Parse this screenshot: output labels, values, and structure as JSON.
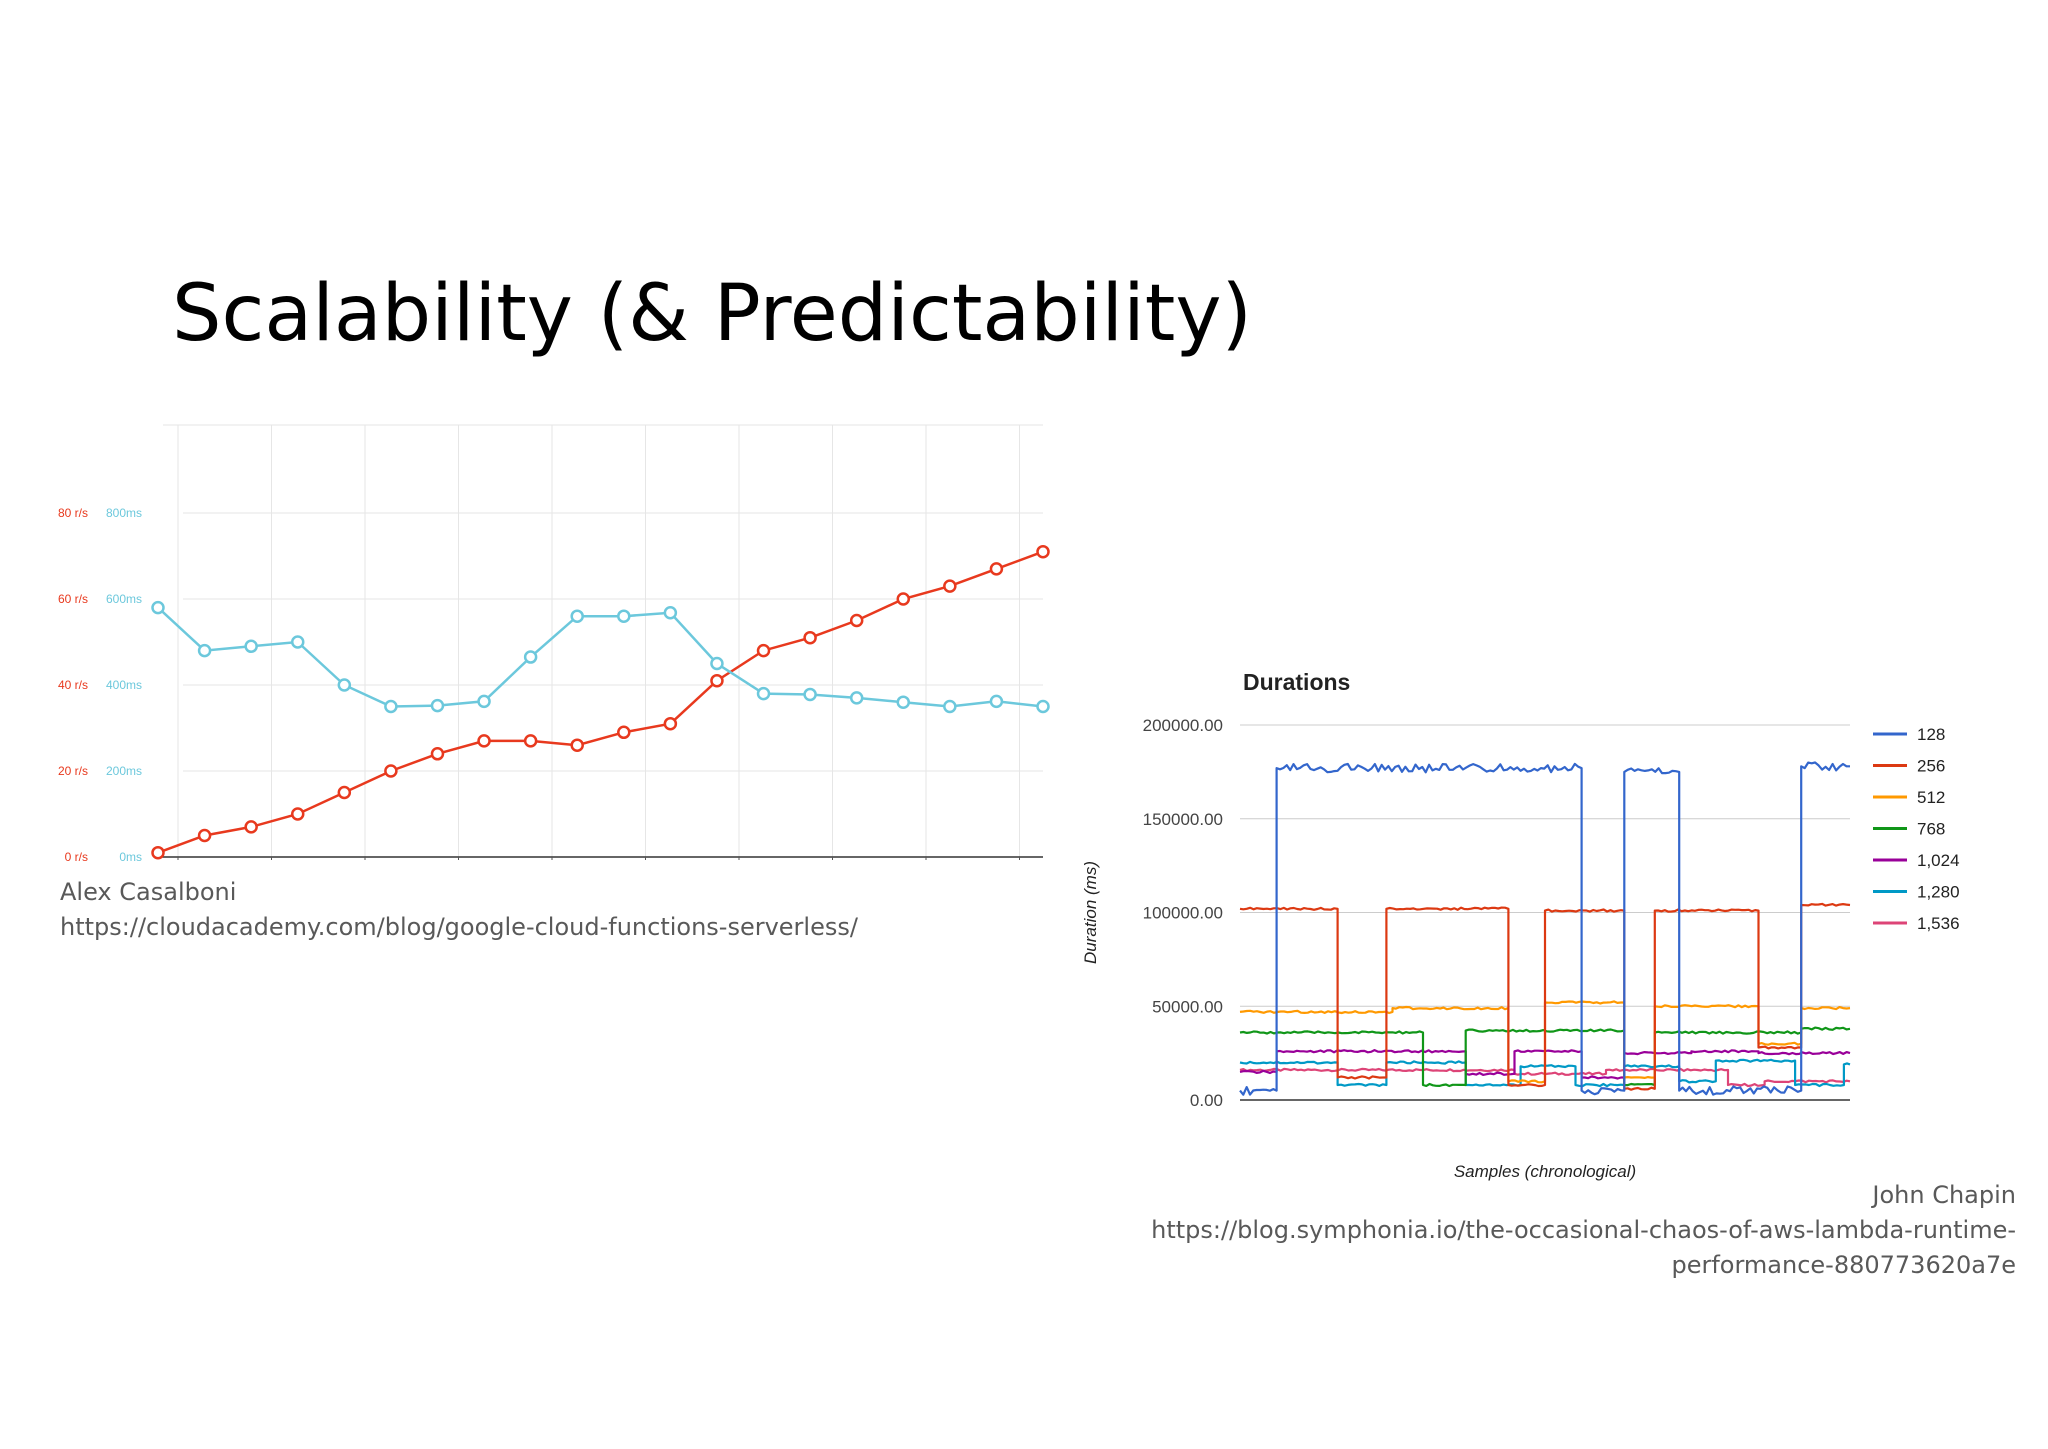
{
  "slide": {
    "title": "Scalability (& Predictability)"
  },
  "credits": {
    "left": {
      "author": "Alex Casalboni",
      "url": "https://cloudacademy.com/blog/google-cloud-functions-serverless/"
    },
    "right": {
      "author": "John Chapin",
      "url_line1": "https://blog.symphonia.io/the-occasional-chaos-of-aws-lambda-runtime-",
      "url_line2": "performance-880773620a7e"
    }
  },
  "chart_data": [
    {
      "type": "line",
      "title": "",
      "grid": true,
      "x": [
        1,
        2,
        3,
        4,
        5,
        6,
        7,
        8,
        9,
        10,
        11,
        12,
        13,
        14,
        15,
        16,
        17,
        18,
        19,
        20
      ],
      "y_left_ticks": [
        "0 r/s",
        "20 r/s",
        "40 r/s",
        "60 r/s",
        "80 r/s"
      ],
      "y_right_ticks": [
        "0ms",
        "200ms",
        "400ms",
        "600ms",
        "800ms"
      ],
      "ylim": [
        0,
        100
      ],
      "series": [
        {
          "axis": "requests",
          "color": "#e8391e",
          "values": [
            1,
            5,
            7,
            10,
            15,
            20,
            24,
            27,
            27,
            26,
            29,
            31,
            41,
            48,
            51,
            55,
            60,
            63,
            67,
            71
          ]
        },
        {
          "axis": "latency_ms",
          "color": "#6cc8dc",
          "values": [
            580,
            480,
            490,
            500,
            400,
            350,
            352,
            362,
            465,
            560,
            560,
            568,
            450,
            380,
            378,
            370,
            360,
            350,
            362,
            350
          ]
        }
      ]
    },
    {
      "type": "line",
      "title": "Durations",
      "xlabel": "Samples (chronological)",
      "ylabel": "Duration (ms)",
      "ylim": [
        0,
        200000
      ],
      "yticks": [
        "0.00",
        "50000.00",
        "100000.00",
        "150000.00",
        "200000.00"
      ],
      "legend_position": "right",
      "grid": true,
      "series": [
        {
          "name": "128",
          "color": "#3366cc",
          "segments": [
            [
              0,
              0.06,
              5000
            ],
            [
              0.06,
              0.56,
              177000
            ],
            [
              0.56,
              0.63,
              5000
            ],
            [
              0.63,
              0.72,
              175000
            ],
            [
              0.72,
              0.92,
              5000
            ],
            [
              0.92,
              1,
              178000
            ]
          ]
        },
        {
          "name": "256",
          "color": "#dc3912",
          "segments": [
            [
              0,
              0.16,
              102000
            ],
            [
              0.16,
              0.24,
              12000
            ],
            [
              0.24,
              0.44,
              102000
            ],
            [
              0.44,
              0.5,
              8000
            ],
            [
              0.5,
              0.63,
              101000
            ],
            [
              0.63,
              0.68,
              6000
            ],
            [
              0.68,
              0.85,
              101000
            ],
            [
              0.85,
              0.92,
              28000
            ],
            [
              0.92,
              1,
              104000
            ]
          ]
        },
        {
          "name": "512",
          "color": "#ff9900",
          "segments": [
            [
              0,
              0.25,
              47000
            ],
            [
              0.25,
              0.44,
              49000
            ],
            [
              0.44,
              0.5,
              10000
            ],
            [
              0.5,
              0.63,
              52000
            ],
            [
              0.63,
              0.68,
              12000
            ],
            [
              0.68,
              0.85,
              50000
            ],
            [
              0.85,
              0.92,
              30000
            ],
            [
              0.92,
              1,
              49000
            ]
          ]
        },
        {
          "name": "768",
          "color": "#109618",
          "segments": [
            [
              0,
              0.3,
              36000
            ],
            [
              0.3,
              0.37,
              8000
            ],
            [
              0.37,
              0.63,
              37000
            ],
            [
              0.63,
              0.68,
              8000
            ],
            [
              0.68,
              0.92,
              36000
            ],
            [
              0.92,
              1,
              38000
            ]
          ]
        },
        {
          "name": "1,024",
          "color": "#990099",
          "segments": [
            [
              0,
              0.06,
              15000
            ],
            [
              0.06,
              0.37,
              26000
            ],
            [
              0.37,
              0.45,
              14000
            ],
            [
              0.45,
              0.56,
              26000
            ],
            [
              0.56,
              0.63,
              12000
            ],
            [
              0.63,
              0.74,
              25000
            ],
            [
              0.74,
              0.85,
              26000
            ],
            [
              0.85,
              1,
              25000
            ]
          ]
        },
        {
          "name": "1,280",
          "color": "#0099c6",
          "segments": [
            [
              0,
              0.16,
              20000
            ],
            [
              0.16,
              0.24,
              8000
            ],
            [
              0.24,
              0.37,
              20000
            ],
            [
              0.37,
              0.46,
              8000
            ],
            [
              0.46,
              0.55,
              18000
            ],
            [
              0.55,
              0.63,
              8000
            ],
            [
              0.63,
              0.72,
              18000
            ],
            [
              0.72,
              0.78,
              10000
            ],
            [
              0.78,
              0.91,
              21000
            ],
            [
              0.91,
              0.99,
              8000
            ],
            [
              0.99,
              1,
              19000
            ]
          ]
        },
        {
          "name": "1,536",
          "color": "#dd4477",
          "segments": [
            [
              0,
              0.45,
              16000
            ],
            [
              0.45,
              0.6,
              14000
            ],
            [
              0.6,
              0.8,
              16000
            ],
            [
              0.8,
              0.86,
              8000
            ],
            [
              0.86,
              1,
              10000
            ]
          ]
        }
      ]
    }
  ]
}
